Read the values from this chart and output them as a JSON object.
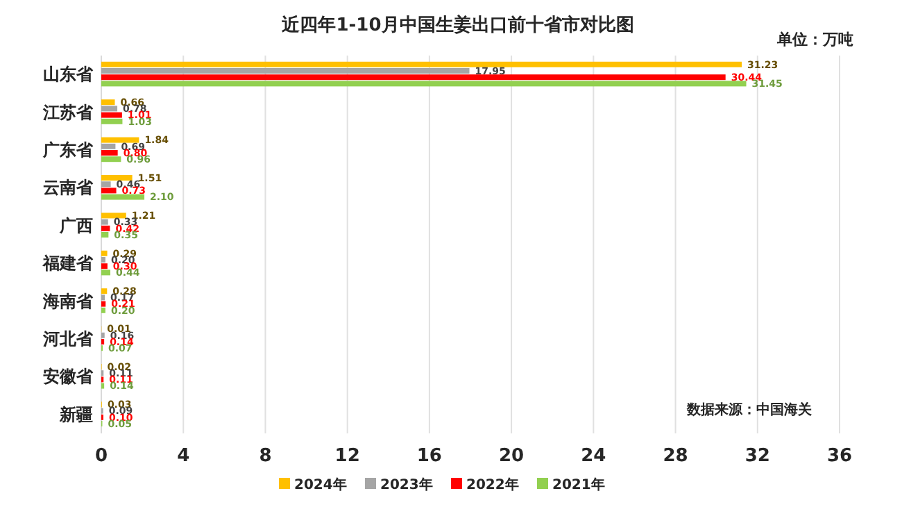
{
  "chart_data": {
    "type": "bar",
    "orientation": "horizontal",
    "title": "近四年1-10月中国生姜出口前十省市对比图",
    "annotations": [
      "单位：万吨",
      "数据来源：中国海关"
    ],
    "categories": [
      "山东省",
      "江苏省",
      "广东省",
      "云南省",
      "广西",
      "福建省",
      "海南省",
      "河北省",
      "安徽省",
      "新疆"
    ],
    "series": [
      {
        "name": "2024年",
        "color": "#ffc000",
        "values": [
          31.23,
          0.66,
          1.84,
          1.51,
          1.21,
          0.29,
          0.28,
          0.01,
          0.02,
          0.03
        ],
        "value_labels": [
          "31.23",
          "0.66",
          "1.84",
          "1.51",
          "1.21",
          "0.29",
          "0.28",
          "0.01",
          "0.02",
          "0.03"
        ]
      },
      {
        "name": "2023年",
        "color": "#a5a5a5",
        "values": [
          17.95,
          0.78,
          0.69,
          0.46,
          0.33,
          0.2,
          0.17,
          0.16,
          0.11,
          0.09
        ],
        "value_labels": [
          "17.95",
          "0.78",
          "0.69",
          "0.46",
          "0.33",
          "0.20",
          "0.17",
          "0.16",
          "0.11",
          "0.09"
        ]
      },
      {
        "name": "2022年",
        "color": "#ff0000",
        "values": [
          30.44,
          1.01,
          0.8,
          0.73,
          0.42,
          0.3,
          0.21,
          0.14,
          0.11,
          0.1
        ],
        "value_labels": [
          "30.44",
          "1.01",
          "0.80",
          "0.73",
          "0.42",
          "0.30",
          "0.21",
          "0.14",
          "0.11",
          "0.10"
        ]
      },
      {
        "name": "2021年",
        "color": "#92d050",
        "values": [
          31.45,
          1.03,
          0.96,
          2.1,
          0.35,
          0.44,
          0.2,
          0.07,
          0.14,
          0.05
        ],
        "value_labels": [
          "31.45",
          "1.03",
          "0.96",
          "2.10",
          "0.35",
          "0.44",
          "0.20",
          "0.07",
          "0.14",
          "0.05"
        ]
      }
    ],
    "xlim": [
      0,
      36
    ],
    "xticks": [
      0,
      4,
      8,
      12,
      16,
      20,
      24,
      28,
      32,
      36
    ],
    "grid": "x",
    "legend": "bottom"
  }
}
